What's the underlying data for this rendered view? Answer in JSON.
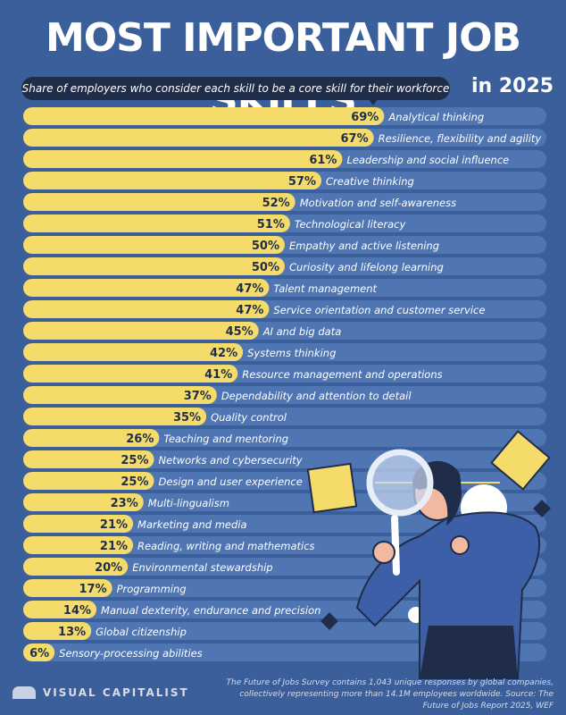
{
  "header": {
    "title": "MOST IMPORTANT JOB SKILLS",
    "subtitle": "Share of employers who consider each skill to be a core skill for their workforce",
    "year_label": "in 2025"
  },
  "colors": {
    "background": "#3b5f9a",
    "track": "#4f76b3",
    "bar": "#f5dc6a",
    "label_dark": "#1f2d4a"
  },
  "chart_data": {
    "type": "bar",
    "orientation": "horizontal",
    "title": "Most Important Job Skills in 2025",
    "subtitle": "Share of employers who consider each skill to be a core skill for their workforce",
    "unit": "%",
    "xlim": [
      0,
      100
    ],
    "categories": [
      "Analytical thinking",
      "Resilience, flexibility and agility",
      "Leadership and social influence",
      "Creative thinking",
      "Motivation and self-awareness",
      "Technological literacy",
      "Empathy and active listening",
      "Curiosity and lifelong learning",
      "Talent management",
      "Service orientation and customer service",
      "AI and big data",
      "Systems thinking",
      "Resource management and operations",
      "Dependability and attention to detail",
      "Quality control",
      "Teaching and mentoring",
      "Networks and cybersecurity",
      "Design and user experience",
      "Multi-lingualism",
      "Marketing and media",
      "Reading, writing and mathematics",
      "Environmental stewardship",
      "Programming",
      "Manual dexterity, endurance and precision",
      "Global citizenship",
      "Sensory-processing abilities"
    ],
    "values": [
      69,
      67,
      61,
      57,
      52,
      51,
      50,
      50,
      47,
      47,
      45,
      42,
      41,
      37,
      35,
      26,
      25,
      25,
      23,
      21,
      21,
      20,
      17,
      14,
      13,
      6
    ],
    "value_labels": [
      "69%",
      "67%",
      "61%",
      "57%",
      "52%",
      "51%",
      "50%",
      "50%",
      "47%",
      "47%",
      "45%",
      "42%",
      "41%",
      "37%",
      "35%",
      "26%",
      "25%",
      "25%",
      "23%",
      "21%",
      "21%",
      "20%",
      "17%",
      "14%",
      "13%",
      "6%"
    ]
  },
  "footer": {
    "brand": "VISUAL CAPITALIST",
    "note": "The Future of Jobs Survey contains 1,043 unique responses by global companies, collectively representing more than 14.1M employees worldwide. Source: The Future of Jobs Report 2025, WEF"
  }
}
